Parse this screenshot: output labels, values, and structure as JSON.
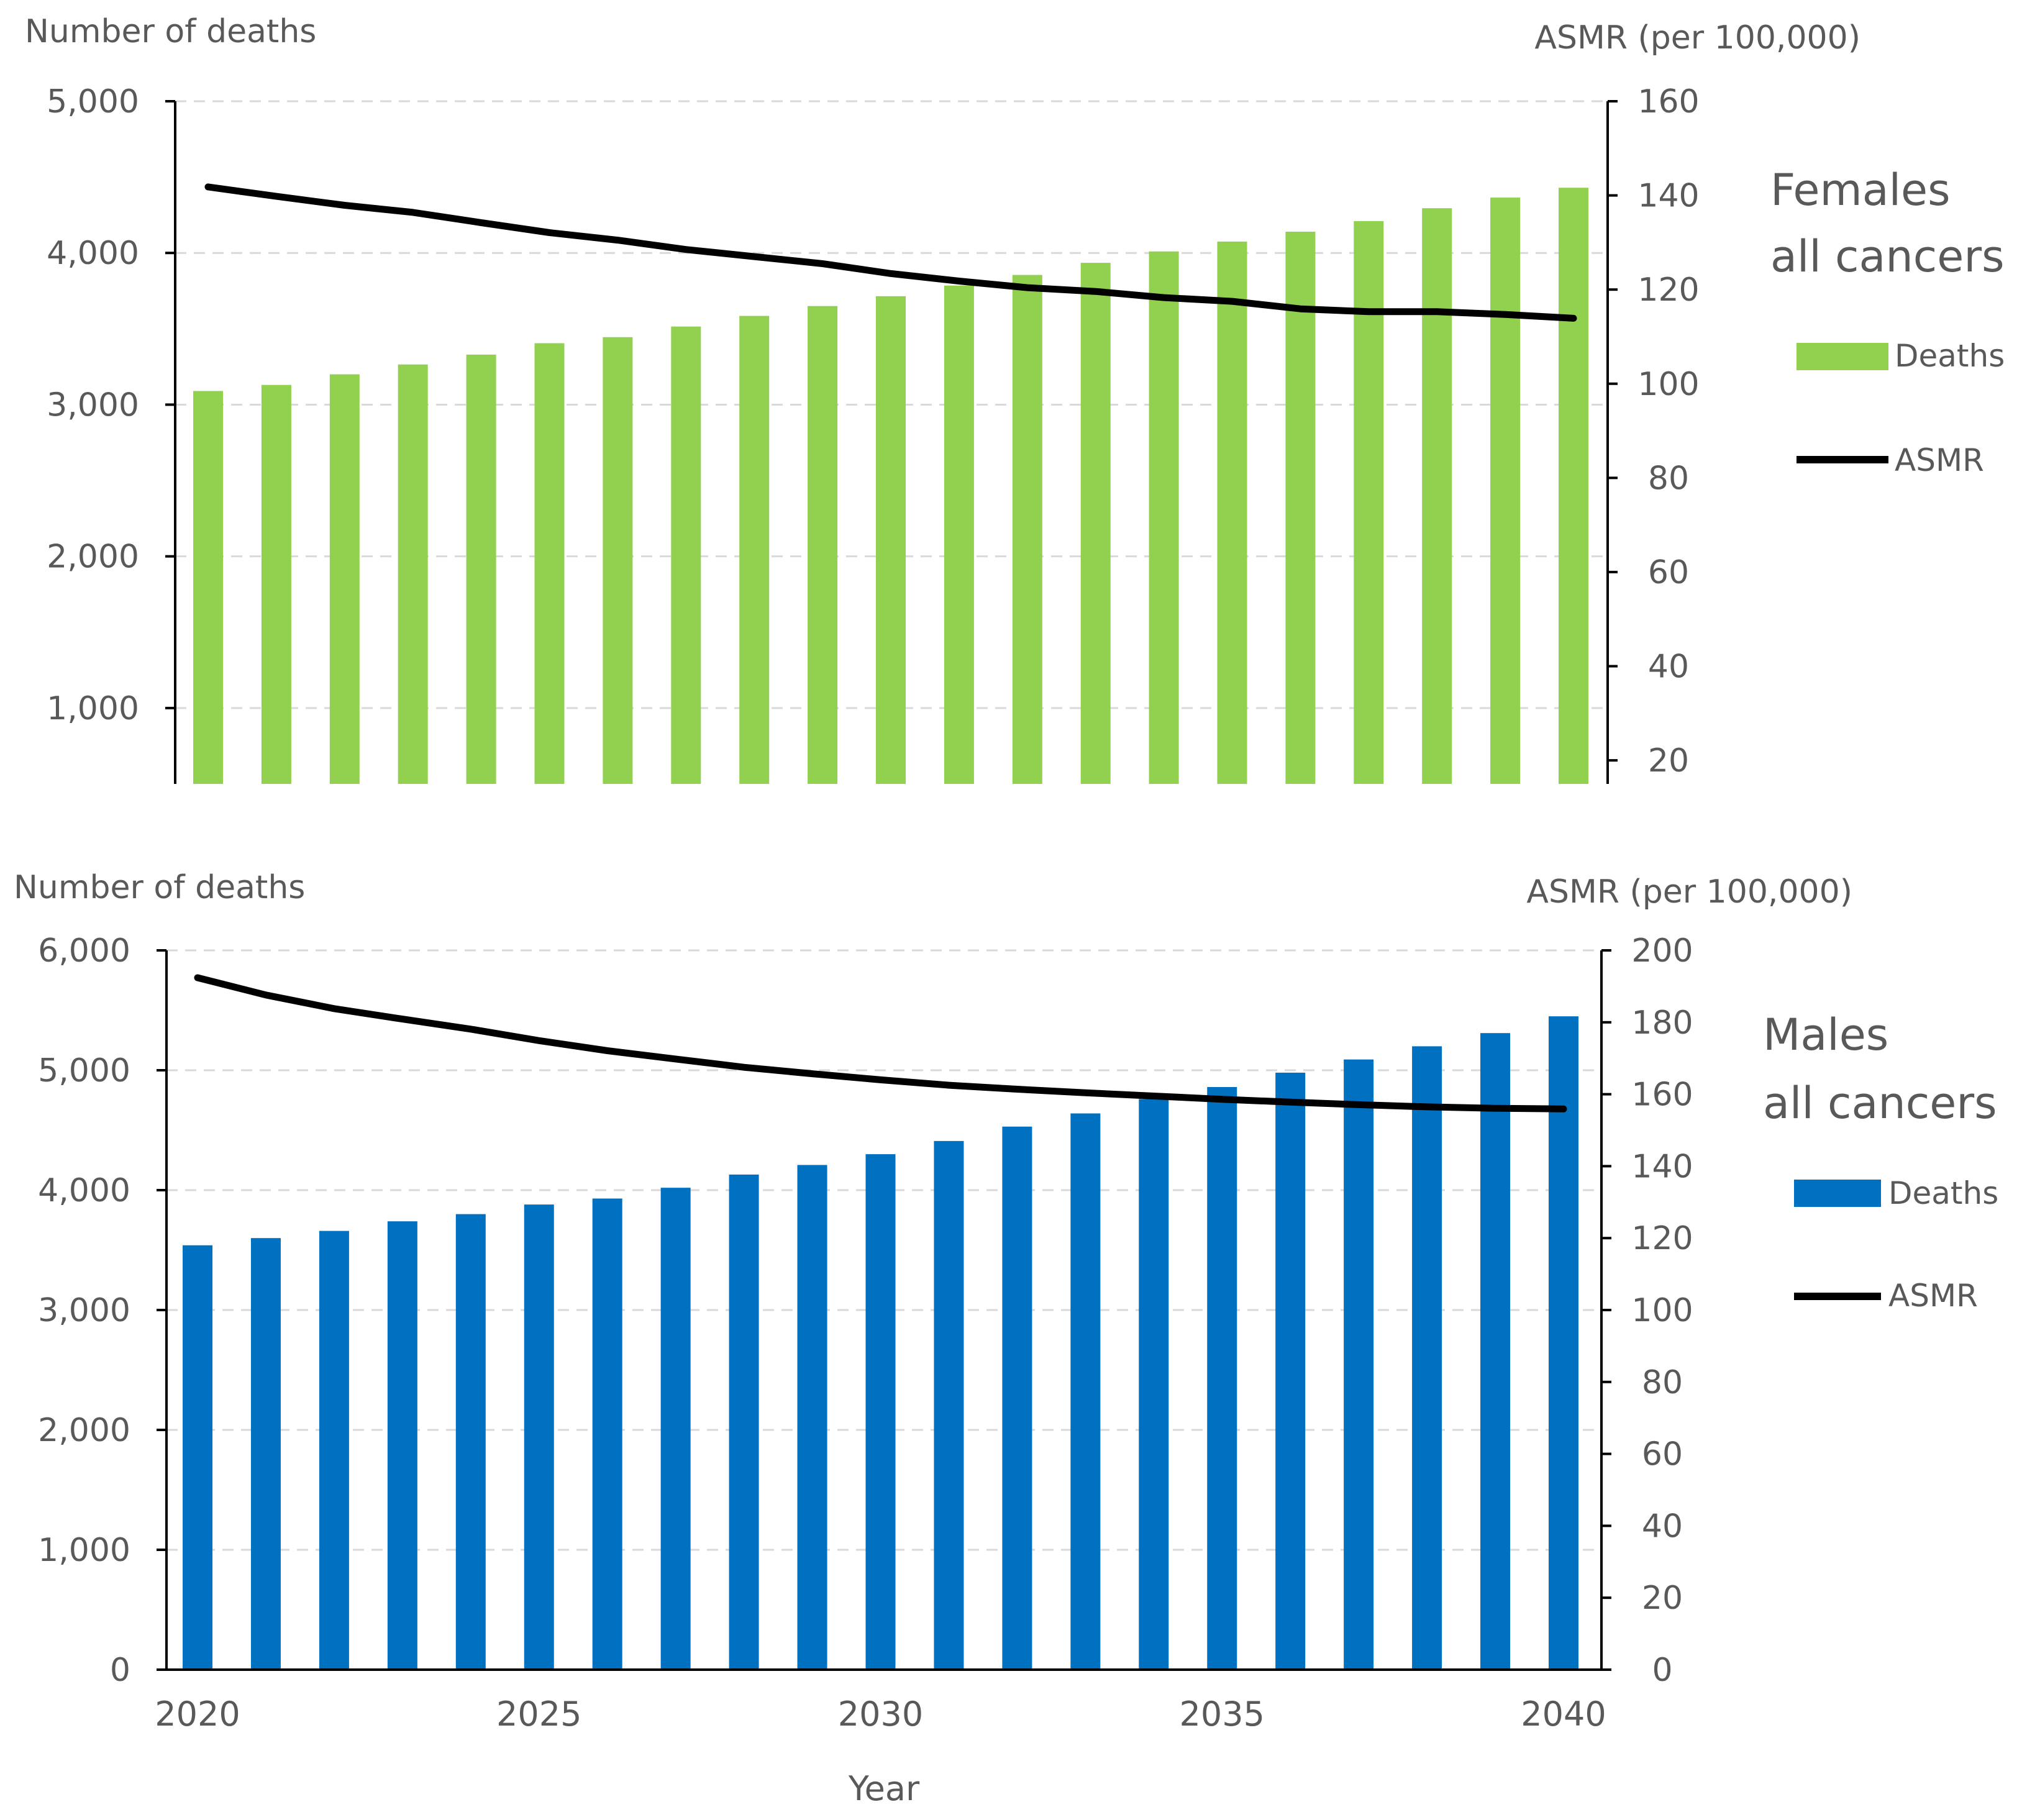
{
  "chart_data": [
    {
      "type": "bar+line",
      "id": "females",
      "title": "Females\nall cancers",
      "title_lines": [
        "Females",
        "all cancers"
      ],
      "left_axis_title": "Number of deaths",
      "right_axis_title": "ASMR (per 100,000)",
      "x": [
        2020,
        2021,
        2022,
        2023,
        2024,
        2025,
        2026,
        2027,
        2028,
        2029,
        2030,
        2031,
        2032,
        2033,
        2034,
        2035,
        2036,
        2037,
        2038,
        2039,
        2040
      ],
      "left_ylim": [
        500,
        5000
      ],
      "left_ticks": [
        1000,
        2000,
        3000,
        4000,
        5000
      ],
      "left_tick_labels": [
        "1,000",
        "2,000",
        "3,000",
        "4,000",
        "5,000"
      ],
      "right_ylim": [
        15,
        160
      ],
      "right_ticks": [
        20,
        40,
        60,
        80,
        100,
        120,
        140,
        160
      ],
      "right_tick_labels": [
        "20",
        "40",
        "60",
        "80",
        "100",
        "120",
        "140",
        "160"
      ],
      "series": [
        {
          "name": "Deaths",
          "axis": "left",
          "type": "bar",
          "color": "#92D050",
          "values": [
            3090,
            3130,
            3200,
            3265,
            3330,
            3405,
            3445,
            3515,
            3585,
            3650,
            3715,
            3785,
            3855,
            3935,
            4010,
            4075,
            4140,
            4210,
            4295,
            4365,
            4430
          ]
        },
        {
          "name": "ASMR",
          "axis": "right",
          "type": "line",
          "color": "#000000",
          "values": [
            141.8,
            139.8,
            137.9,
            136.4,
            134.2,
            132.1,
            130.5,
            128.5,
            127.0,
            125.5,
            123.4,
            121.8,
            120.4,
            119.6,
            118.3,
            117.5,
            115.9,
            115.3,
            115.3,
            114.7,
            113.9
          ]
        }
      ],
      "legend": [
        {
          "label": "Deaths",
          "kind": "bar"
        },
        {
          "label": "ASMR",
          "kind": "line"
        }
      ]
    },
    {
      "type": "bar+line",
      "id": "males",
      "title": "Males\nall cancers",
      "title_lines": [
        "Males",
        "all cancers"
      ],
      "left_axis_title": "Number of deaths",
      "right_axis_title": "ASMR (per 100,000)",
      "xlabel": "Year",
      "x": [
        2020,
        2021,
        2022,
        2023,
        2024,
        2025,
        2026,
        2027,
        2028,
        2029,
        2030,
        2031,
        2032,
        2033,
        2034,
        2035,
        2036,
        2037,
        2038,
        2039,
        2040
      ],
      "x_tick_labels": [
        "2020",
        "2025",
        "2030",
        "2035",
        "2040"
      ],
      "x_tick_years": [
        2020,
        2025,
        2030,
        2035,
        2040
      ],
      "left_ylim": [
        0,
        6000
      ],
      "left_ticks": [
        0,
        1000,
        2000,
        3000,
        4000,
        5000,
        6000
      ],
      "left_tick_labels": [
        "0",
        "1,000",
        "2,000",
        "3,000",
        "4,000",
        "5,000",
        "6,000"
      ],
      "right_ylim": [
        0,
        200
      ],
      "right_ticks": [
        0,
        20,
        40,
        60,
        80,
        100,
        120,
        140,
        160,
        180,
        200
      ],
      "right_tick_labels": [
        "0",
        "20",
        "40",
        "60",
        "80",
        "100",
        "120",
        "140",
        "160",
        "180",
        "200"
      ],
      "series": [
        {
          "name": "Deaths",
          "axis": "left",
          "type": "bar",
          "color": "#0070C0",
          "values": [
            3540,
            3600,
            3660,
            3740,
            3800,
            3880,
            3930,
            4020,
            4130,
            4210,
            4300,
            4410,
            4530,
            4640,
            4760,
            4860,
            4980,
            5090,
            5200,
            5310,
            5450
          ]
        },
        {
          "name": "ASMR",
          "axis": "right",
          "type": "line",
          "color": "#000000",
          "values": [
            192.4,
            187.6,
            183.8,
            180.9,
            178.1,
            174.9,
            172.1,
            169.8,
            167.5,
            165.7,
            164.0,
            162.5,
            161.4,
            160.4,
            159.5,
            158.6,
            157.8,
            157.1,
            156.5,
            156.1,
            155.9
          ]
        }
      ],
      "legend": [
        {
          "label": "Deaths",
          "kind": "bar"
        },
        {
          "label": "ASMR",
          "kind": "line"
        }
      ]
    }
  ]
}
